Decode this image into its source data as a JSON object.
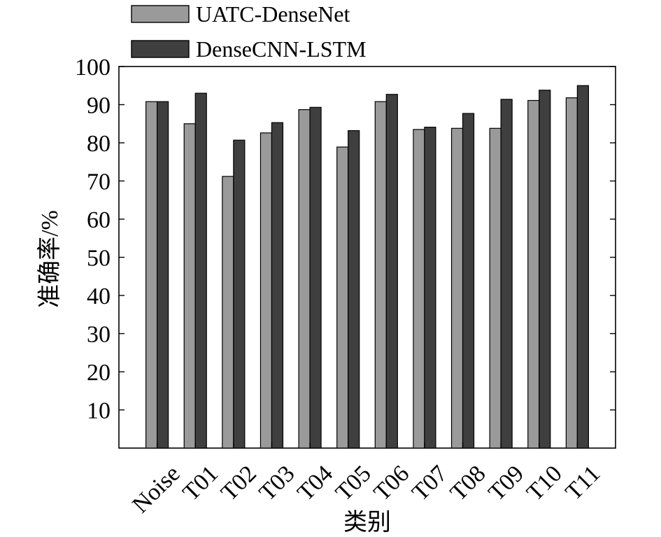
{
  "chart_data": {
    "type": "bar",
    "categories": [
      "Noise",
      "T01",
      "T02",
      "T03",
      "T04",
      "T05",
      "T06",
      "T07",
      "T08",
      "T09",
      "T10",
      "T11"
    ],
    "series": [
      {
        "name": "UATC-DenseNet",
        "color": "#9a9a9a",
        "values": [
          90.8,
          85.0,
          71.2,
          82.6,
          88.7,
          78.9,
          90.8,
          83.5,
          83.8,
          83.8,
          91.1,
          91.8
        ]
      },
      {
        "name": "DenseCNN-LSTM",
        "color": "#3f3f3f",
        "values": [
          90.8,
          93.0,
          80.7,
          85.3,
          89.3,
          83.2,
          92.7,
          84.1,
          87.7,
          91.4,
          93.8,
          95.0
        ]
      }
    ],
    "xlabel": "类别",
    "ylabel": "准确率/%",
    "ylim": [
      0,
      100
    ],
    "yticks": [
      10,
      20,
      30,
      40,
      50,
      60,
      70,
      80,
      90,
      100
    ],
    "grid": false,
    "legend_position": "top-left, above plot"
  }
}
